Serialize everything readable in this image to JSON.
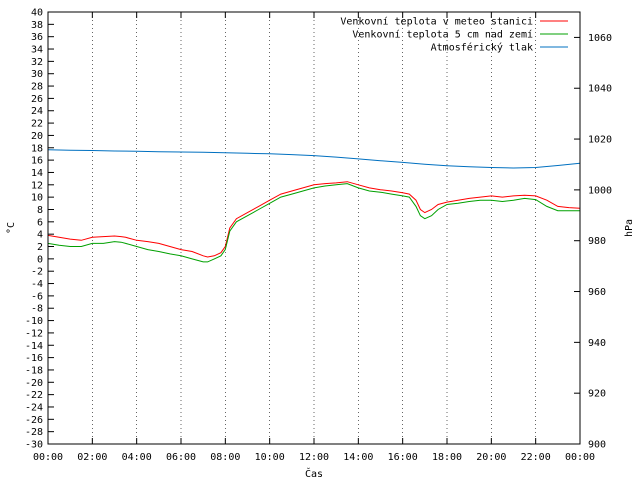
{
  "chart_data": {
    "type": "line",
    "xlabel": "Čas",
    "ylabel": "°C",
    "y2label": "hPa",
    "xticks": [
      "00:00",
      "02:00",
      "04:00",
      "06:00",
      "08:00",
      "10:00",
      "12:00",
      "14:00",
      "16:00",
      "18:00",
      "20:00",
      "22:00",
      "00:00"
    ],
    "xlim": [
      0,
      24
    ],
    "ylim": [
      -30,
      40
    ],
    "y2lim": [
      900,
      1070
    ],
    "y2ticks": [
      900,
      920,
      940,
      960,
      980,
      1000,
      1020,
      1040,
      1060
    ],
    "legend_position": "top-right",
    "series": [
      {
        "name": "Venkovní teplota v meteo stanici",
        "color": "#ff0000",
        "axis": "left",
        "x": [
          0,
          0.5,
          1,
          1.5,
          2,
          2.5,
          3,
          3.3,
          3.5,
          4,
          4.5,
          5,
          5.5,
          6,
          6.5,
          7,
          7.2,
          7.5,
          7.8,
          8,
          8.2,
          8.5,
          9,
          9.5,
          10,
          10.5,
          11,
          11.5,
          12,
          12.5,
          13,
          13.5,
          14,
          14.5,
          15,
          15.5,
          16,
          16.3,
          16.6,
          16.8,
          17,
          17.3,
          17.6,
          18,
          18.5,
          19,
          19.5,
          20,
          20.5,
          21,
          21.5,
          22,
          22.5,
          23,
          23.5,
          24
        ],
        "values": [
          3.8,
          3.5,
          3.2,
          3.0,
          3.5,
          3.6,
          3.7,
          3.6,
          3.5,
          3.0,
          2.8,
          2.5,
          2.0,
          1.5,
          1.2,
          0.5,
          0.3,
          0.5,
          1.0,
          2.0,
          5.0,
          6.5,
          7.5,
          8.5,
          9.5,
          10.5,
          11.0,
          11.5,
          12.0,
          12.2,
          12.3,
          12.5,
          12.0,
          11.5,
          11.2,
          11.0,
          10.7,
          10.5,
          9.5,
          8.0,
          7.5,
          8.0,
          8.8,
          9.2,
          9.5,
          9.8,
          10.0,
          10.2,
          10.0,
          10.2,
          10.3,
          10.2,
          9.5,
          8.5,
          8.3,
          8.2
        ]
      },
      {
        "name": "Venkovní teplota 5 cm nad zemí",
        "color": "#00a000",
        "axis": "left",
        "x": [
          0,
          0.5,
          1,
          1.5,
          2,
          2.5,
          3,
          3.3,
          3.5,
          4,
          4.5,
          5,
          5.5,
          6,
          6.5,
          7,
          7.2,
          7.5,
          7.8,
          8,
          8.2,
          8.5,
          9,
          9.5,
          10,
          10.5,
          11,
          11.5,
          12,
          12.5,
          13,
          13.5,
          14,
          14.5,
          15,
          15.5,
          16,
          16.3,
          16.6,
          16.8,
          17,
          17.3,
          17.6,
          18,
          18.5,
          19,
          19.5,
          20,
          20.5,
          21,
          21.5,
          22,
          22.5,
          23,
          23.5,
          24
        ],
        "values": [
          2.5,
          2.2,
          2.0,
          2.0,
          2.5,
          2.5,
          2.8,
          2.7,
          2.5,
          2.0,
          1.5,
          1.2,
          0.8,
          0.5,
          0.0,
          -0.5,
          -0.5,
          0.0,
          0.5,
          1.5,
          4.5,
          6.0,
          7.0,
          8.0,
          9.0,
          10.0,
          10.5,
          11.0,
          11.5,
          11.8,
          12.0,
          12.2,
          11.5,
          11.0,
          10.8,
          10.5,
          10.2,
          10.0,
          8.5,
          7.0,
          6.5,
          7.0,
          8.0,
          8.8,
          9.0,
          9.3,
          9.5,
          9.5,
          9.3,
          9.5,
          9.8,
          9.6,
          8.5,
          7.8,
          7.8,
          7.8
        ]
      },
      {
        "name": "Atmosférický tlak",
        "color": "#0070c0",
        "axis": "right",
        "x": [
          0,
          1,
          2,
          3,
          4,
          5,
          6,
          7,
          8,
          9,
          10,
          11,
          12,
          13,
          14,
          15,
          16,
          17,
          18,
          19,
          20,
          21,
          22,
          23,
          24
        ],
        "values": [
          1015.8,
          1015.6,
          1015.5,
          1015.3,
          1015.2,
          1015.0,
          1014.9,
          1014.8,
          1014.6,
          1014.4,
          1014.2,
          1013.9,
          1013.5,
          1012.9,
          1012.2,
          1011.5,
          1010.8,
          1010.1,
          1009.5,
          1009.1,
          1008.8,
          1008.6,
          1008.8,
          1009.6,
          1010.5
        ]
      }
    ]
  }
}
